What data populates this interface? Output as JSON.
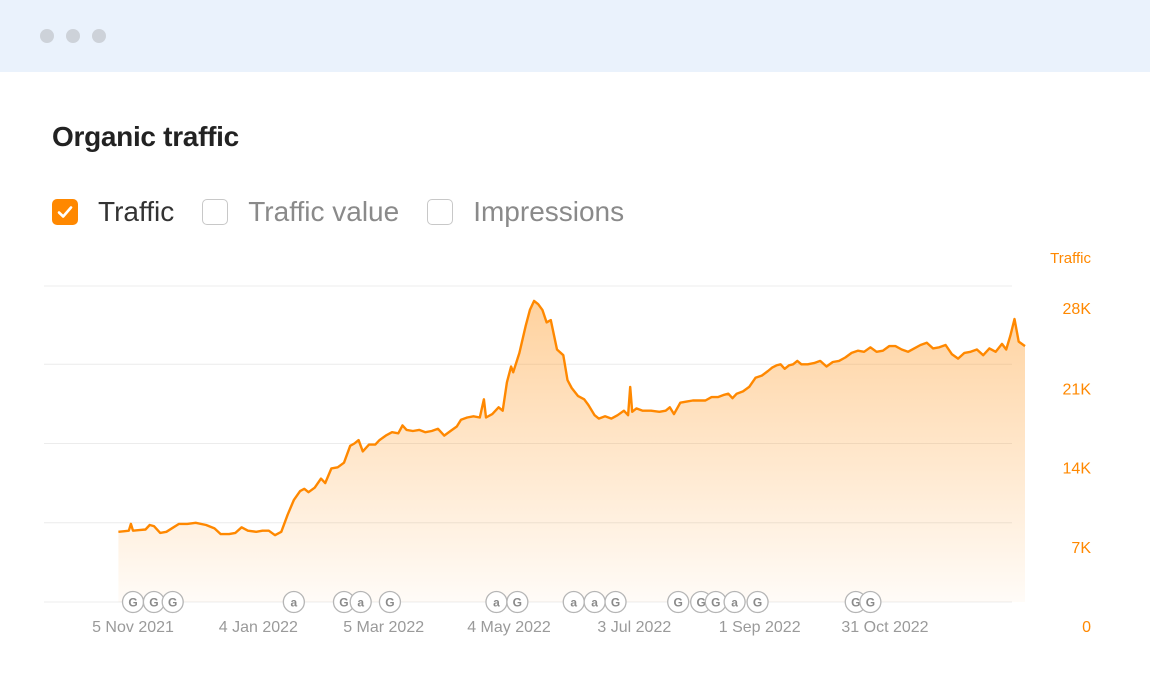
{
  "window": {
    "controls": [
      "dot",
      "dot",
      "dot"
    ]
  },
  "title": "Organic traffic",
  "legend": [
    {
      "label": "Traffic",
      "checked": true
    },
    {
      "label": "Traffic value",
      "checked": false
    },
    {
      "label": "Impressions",
      "checked": false
    }
  ],
  "colors": {
    "accent": "#ff8800",
    "grid": "#ececec",
    "muted": "#9a9a9a"
  },
  "chart_data": {
    "type": "area",
    "title": "Organic traffic",
    "y_axis_title": "Traffic",
    "ylim": [
      0,
      28000
    ],
    "yticks": [
      0,
      7000,
      14000,
      21000,
      28000
    ],
    "ytick_labels": [
      "0",
      "7K",
      "14K",
      "21K",
      "28K"
    ],
    "xtick_labels": [
      "5 Nov 2021",
      "4 Jan 2022",
      "5 Mar 2022",
      "4 May 2022",
      "3 Jul 2022",
      "1 Sep 2022",
      "31 Oct 2022"
    ],
    "xticks": [
      "2021-11-05",
      "2022-01-04",
      "2022-03-05",
      "2022-05-04",
      "2022-07-03",
      "2022-09-01",
      "2022-10-31"
    ],
    "grid": true,
    "series": [
      {
        "name": "Traffic",
        "points": [
          [
            "2021-10-29",
            6200
          ],
          [
            "2021-11-01",
            6250
          ],
          [
            "2021-11-03",
            6300
          ],
          [
            "2021-11-04",
            6900
          ],
          [
            "2021-11-05",
            6300
          ],
          [
            "2021-11-08",
            6350
          ],
          [
            "2021-11-11",
            6400
          ],
          [
            "2021-11-13",
            6800
          ],
          [
            "2021-11-15",
            6700
          ],
          [
            "2021-11-18",
            6100
          ],
          [
            "2021-11-21",
            6200
          ],
          [
            "2021-11-24",
            6550
          ],
          [
            "2021-11-27",
            6900
          ],
          [
            "2021-12-01",
            6900
          ],
          [
            "2021-12-05",
            7000
          ],
          [
            "2021-12-10",
            6800
          ],
          [
            "2021-12-14",
            6500
          ],
          [
            "2021-12-17",
            6000
          ],
          [
            "2021-12-21",
            6000
          ],
          [
            "2021-12-24",
            6100
          ],
          [
            "2021-12-27",
            6600
          ],
          [
            "2021-12-30",
            6300
          ],
          [
            "2022-01-03",
            6200
          ],
          [
            "2022-01-06",
            6300
          ],
          [
            "2022-01-09",
            6300
          ],
          [
            "2022-01-12",
            5900
          ],
          [
            "2022-01-15",
            6200
          ],
          [
            "2022-01-18",
            7700
          ],
          [
            "2022-01-21",
            9000
          ],
          [
            "2022-01-24",
            9800
          ],
          [
            "2022-01-26",
            10000
          ],
          [
            "2022-01-28",
            9700
          ],
          [
            "2022-01-31",
            10100
          ],
          [
            "2022-02-03",
            10900
          ],
          [
            "2022-02-05",
            10500
          ],
          [
            "2022-02-08",
            11800
          ],
          [
            "2022-02-11",
            11900
          ],
          [
            "2022-02-14",
            12300
          ],
          [
            "2022-02-17",
            13800
          ],
          [
            "2022-02-19",
            14000
          ],
          [
            "2022-02-21",
            14300
          ],
          [
            "2022-02-23",
            13300
          ],
          [
            "2022-02-26",
            13900
          ],
          [
            "2022-03-01",
            13900
          ],
          [
            "2022-03-03",
            14300
          ],
          [
            "2022-03-06",
            14700
          ],
          [
            "2022-03-09",
            15000
          ],
          [
            "2022-03-12",
            14900
          ],
          [
            "2022-03-14",
            15600
          ],
          [
            "2022-03-16",
            15200
          ],
          [
            "2022-03-19",
            15100
          ],
          [
            "2022-03-22",
            15200
          ],
          [
            "2022-03-25",
            15000
          ],
          [
            "2022-03-28",
            15100
          ],
          [
            "2022-03-31",
            15300
          ],
          [
            "2022-04-03",
            14700
          ],
          [
            "2022-04-06",
            15100
          ],
          [
            "2022-04-09",
            15500
          ],
          [
            "2022-04-11",
            16100
          ],
          [
            "2022-04-14",
            16300
          ],
          [
            "2022-04-17",
            16400
          ],
          [
            "2022-04-20",
            16300
          ],
          [
            "2022-04-22",
            17900
          ],
          [
            "2022-04-23",
            16300
          ],
          [
            "2022-04-26",
            16600
          ],
          [
            "2022-04-29",
            17200
          ],
          [
            "2022-05-01",
            16900
          ],
          [
            "2022-05-03",
            19400
          ],
          [
            "2022-05-05",
            20800
          ],
          [
            "2022-05-06",
            20300
          ],
          [
            "2022-05-09",
            22000
          ],
          [
            "2022-05-12",
            24400
          ],
          [
            "2022-05-14",
            25800
          ],
          [
            "2022-05-16",
            26600
          ],
          [
            "2022-05-18",
            26300
          ],
          [
            "2022-05-20",
            25800
          ],
          [
            "2022-05-22",
            24700
          ],
          [
            "2022-05-24",
            24900
          ],
          [
            "2022-05-27",
            22300
          ],
          [
            "2022-05-30",
            21800
          ],
          [
            "2022-06-01",
            19600
          ],
          [
            "2022-06-03",
            18900
          ],
          [
            "2022-06-06",
            18200
          ],
          [
            "2022-06-09",
            17900
          ],
          [
            "2022-06-11",
            17400
          ],
          [
            "2022-06-14",
            16500
          ],
          [
            "2022-06-16",
            16200
          ],
          [
            "2022-06-19",
            16400
          ],
          [
            "2022-06-22",
            16200
          ],
          [
            "2022-06-25",
            16500
          ],
          [
            "2022-06-28",
            16900
          ],
          [
            "2022-06-30",
            16500
          ],
          [
            "2022-07-01",
            19000
          ],
          [
            "2022-07-02",
            16800
          ],
          [
            "2022-07-04",
            17100
          ],
          [
            "2022-07-07",
            16900
          ],
          [
            "2022-07-11",
            16900
          ],
          [
            "2022-07-15",
            16800
          ],
          [
            "2022-07-18",
            16900
          ],
          [
            "2022-07-20",
            17200
          ],
          [
            "2022-07-22",
            16600
          ],
          [
            "2022-07-25",
            17600
          ],
          [
            "2022-07-28",
            17700
          ],
          [
            "2022-07-31",
            17800
          ],
          [
            "2022-08-03",
            17800
          ],
          [
            "2022-08-06",
            17800
          ],
          [
            "2022-08-09",
            18100
          ],
          [
            "2022-08-12",
            18100
          ],
          [
            "2022-08-15",
            18300
          ],
          [
            "2022-08-17",
            18400
          ],
          [
            "2022-08-19",
            18000
          ],
          [
            "2022-08-21",
            18400
          ],
          [
            "2022-08-24",
            18600
          ],
          [
            "2022-08-27",
            19000
          ],
          [
            "2022-08-30",
            19800
          ],
          [
            "2022-09-02",
            20000
          ],
          [
            "2022-09-05",
            20400
          ],
          [
            "2022-09-07",
            20700
          ],
          [
            "2022-09-09",
            20900
          ],
          [
            "2022-09-11",
            21000
          ],
          [
            "2022-09-13",
            20600
          ],
          [
            "2022-09-15",
            20900
          ],
          [
            "2022-09-17",
            21000
          ],
          [
            "2022-09-19",
            21300
          ],
          [
            "2022-09-21",
            21000
          ],
          [
            "2022-09-24",
            21000
          ],
          [
            "2022-09-27",
            21100
          ],
          [
            "2022-09-30",
            21300
          ],
          [
            "2022-10-03",
            20800
          ],
          [
            "2022-10-06",
            21200
          ],
          [
            "2022-10-09",
            21300
          ],
          [
            "2022-10-12",
            21600
          ],
          [
            "2022-10-15",
            22000
          ],
          [
            "2022-10-18",
            22200
          ],
          [
            "2022-10-21",
            22100
          ],
          [
            "2022-10-24",
            22500
          ],
          [
            "2022-10-27",
            22100
          ],
          [
            "2022-10-30",
            22200
          ],
          [
            "2022-11-02",
            22600
          ],
          [
            "2022-11-05",
            22600
          ],
          [
            "2022-11-08",
            22300
          ],
          [
            "2022-11-11",
            22100
          ],
          [
            "2022-11-14",
            22400
          ],
          [
            "2022-11-17",
            22700
          ],
          [
            "2022-11-20",
            22900
          ],
          [
            "2022-11-23",
            22400
          ],
          [
            "2022-11-26",
            22500
          ],
          [
            "2022-11-29",
            22700
          ],
          [
            "2022-12-02",
            21900
          ],
          [
            "2022-12-05",
            21500
          ],
          [
            "2022-12-08",
            22000
          ],
          [
            "2022-12-11",
            22100
          ],
          [
            "2022-12-14",
            22300
          ],
          [
            "2022-12-17",
            21800
          ],
          [
            "2022-12-20",
            22400
          ],
          [
            "2022-12-23",
            22100
          ],
          [
            "2022-12-26",
            22800
          ],
          [
            "2022-12-28",
            22300
          ],
          [
            "2022-12-30",
            23500
          ],
          [
            "2023-01-01",
            25000
          ],
          [
            "2023-01-03",
            23000
          ],
          [
            "2023-01-06",
            22600
          ]
        ]
      }
    ],
    "annotations": [
      {
        "date": "2021-11-05",
        "label": "G"
      },
      {
        "date": "2021-11-15",
        "label": "G"
      },
      {
        "date": "2021-11-24",
        "label": "G"
      },
      {
        "date": "2022-01-21",
        "label": "a"
      },
      {
        "date": "2022-02-14",
        "label": "G"
      },
      {
        "date": "2022-02-22",
        "label": "a"
      },
      {
        "date": "2022-03-08",
        "label": "G"
      },
      {
        "date": "2022-04-28",
        "label": "a"
      },
      {
        "date": "2022-05-08",
        "label": "G"
      },
      {
        "date": "2022-06-04",
        "label": "a"
      },
      {
        "date": "2022-06-14",
        "label": "a"
      },
      {
        "date": "2022-06-24",
        "label": "G"
      },
      {
        "date": "2022-07-24",
        "label": "G"
      },
      {
        "date": "2022-08-04",
        "label": "G"
      },
      {
        "date": "2022-08-11",
        "label": "G"
      },
      {
        "date": "2022-08-20",
        "label": "a"
      },
      {
        "date": "2022-08-31",
        "label": "G"
      },
      {
        "date": "2022-10-17",
        "label": "G"
      },
      {
        "date": "2022-10-24",
        "label": "G"
      }
    ]
  }
}
